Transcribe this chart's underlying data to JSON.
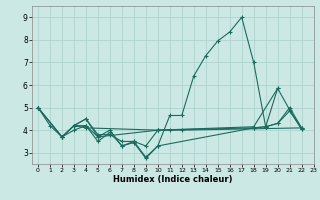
{
  "xlabel": "Humidex (Indice chaleur)",
  "ylabel": "",
  "bg_color": "#cce8e4",
  "grid_color": "#aacfcb",
  "line_color": "#1a6b5e",
  "xlim": [
    -0.5,
    23
  ],
  "ylim": [
    2.5,
    9.5
  ],
  "xticks": [
    0,
    1,
    2,
    3,
    4,
    5,
    6,
    7,
    8,
    9,
    10,
    11,
    12,
    13,
    14,
    15,
    16,
    17,
    18,
    19,
    20,
    21,
    22,
    23
  ],
  "yticks": [
    3,
    4,
    5,
    6,
    7,
    8,
    9
  ],
  "series": [
    {
      "x": [
        0,
        1,
        2,
        3,
        4,
        5,
        6,
        7,
        8,
        9,
        10,
        11,
        12,
        13,
        14,
        15,
        16,
        17,
        18,
        19,
        20,
        21,
        22
      ],
      "y": [
        5.0,
        4.2,
        3.7,
        4.2,
        4.5,
        3.8,
        3.8,
        3.5,
        3.5,
        2.8,
        3.3,
        4.65,
        4.65,
        6.4,
        7.3,
        7.95,
        8.35,
        9.0,
        7.0,
        4.15,
        4.3,
        5.0,
        4.1
      ]
    },
    {
      "x": [
        0,
        2,
        3,
        4,
        5,
        6,
        7,
        8,
        9,
        10,
        11,
        12,
        22
      ],
      "y": [
        5.0,
        3.7,
        4.2,
        4.2,
        3.7,
        4.0,
        3.3,
        3.5,
        3.3,
        4.0,
        4.0,
        4.0,
        4.1
      ]
    },
    {
      "x": [
        0,
        2,
        3,
        4,
        5,
        6,
        7,
        8,
        9,
        10,
        18,
        19,
        20,
        21,
        22
      ],
      "y": [
        5.0,
        3.7,
        4.0,
        4.2,
        3.5,
        3.9,
        3.3,
        3.45,
        2.75,
        3.3,
        4.1,
        4.15,
        4.3,
        4.85,
        4.05
      ]
    },
    {
      "x": [
        0,
        2,
        3,
        4,
        5,
        10,
        18,
        19,
        20,
        21,
        22
      ],
      "y": [
        5.0,
        3.7,
        4.2,
        4.5,
        3.7,
        4.0,
        4.1,
        4.15,
        5.85,
        4.9,
        4.05
      ]
    },
    {
      "x": [
        3,
        4,
        10,
        18,
        20
      ],
      "y": [
        4.2,
        4.1,
        4.0,
        4.15,
        5.85
      ]
    }
  ]
}
